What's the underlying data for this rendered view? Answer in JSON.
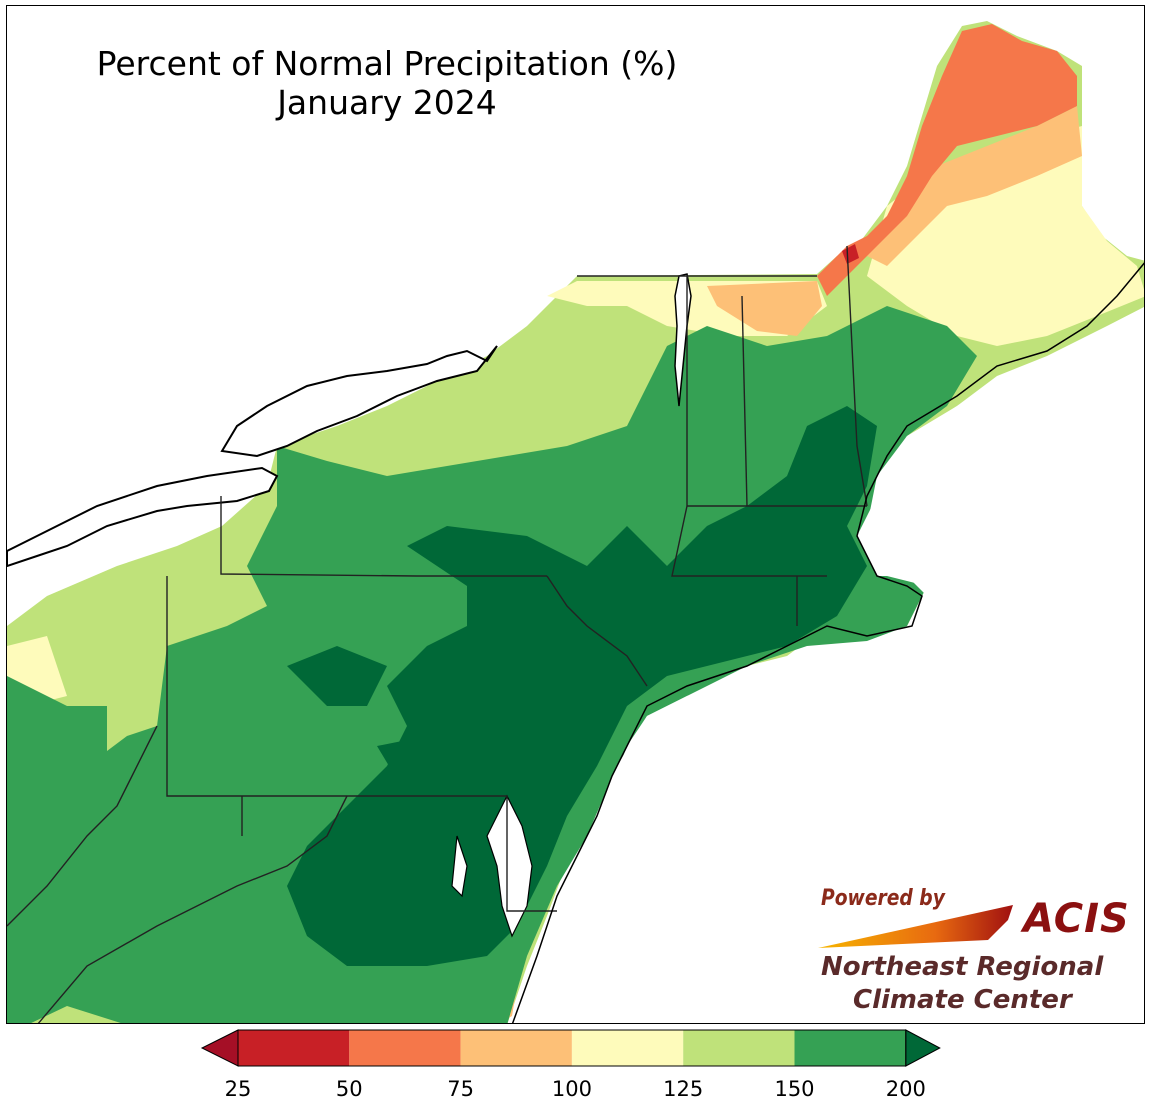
{
  "title": "Percent of Normal Precipitation (%)",
  "subtitle": "January 2024",
  "legend": {
    "bins": [
      {
        "from": 25,
        "to": 50,
        "color": "#c82026"
      },
      {
        "from": 50,
        "to": 75,
        "color": "#f5774a"
      },
      {
        "from": 75,
        "to": 100,
        "color": "#fdc077"
      },
      {
        "from": 100,
        "to": 125,
        "color": "#fefbbb"
      },
      {
        "from": 125,
        "to": 150,
        "color": "#bfe27a"
      },
      {
        "from": 150,
        "to": 200,
        "color": "#35a154"
      }
    ],
    "under_color": "#a50f26",
    "over_color": "#006837",
    "ticks": [
      "25",
      "50",
      "75",
      "100",
      "125",
      "150",
      "200"
    ]
  },
  "logo": {
    "powered_by": "Powered by",
    "acis": "ACIS",
    "org_line1": "Northeast Regional",
    "org_line2": "Climate Center"
  },
  "colors": {
    "darkest_green": "#006837",
    "green": "#35a154",
    "light_green": "#bfe27a",
    "pale_yellow": "#fefbbb",
    "light_orange": "#fdc077",
    "orange": "#f5774a",
    "red": "#c82026"
  }
}
